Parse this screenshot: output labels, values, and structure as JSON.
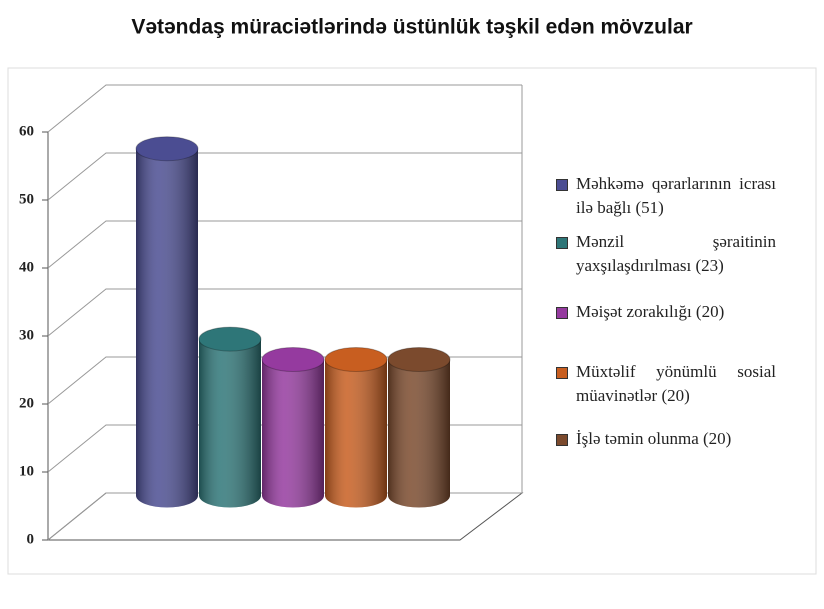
{
  "chart_data": {
    "type": "bar",
    "title": "Vətəndaş müraciətlərində üstünlük təşkil edən mövzular",
    "categories": [
      "Məhkəmə qərarlarının icrası ilə bağlı (51)",
      "Mənzil şəraitinin yaxşılaşdırılması (23)",
      "Məişət zorakılığı (20)",
      "Müxtəlif yönümlü sosial müavinətlər (20)",
      "İşlə təmin olunma (20)"
    ],
    "values": [
      51,
      23,
      20,
      20,
      20
    ],
    "colors": [
      "#4b4d92",
      "#2e7678",
      "#953a9f",
      "#c85e20",
      "#7b4a2d"
    ],
    "ylim": [
      0,
      60
    ],
    "yticks": [
      0,
      10,
      20,
      30,
      40,
      50,
      60
    ],
    "grid": true,
    "legend": "right"
  }
}
